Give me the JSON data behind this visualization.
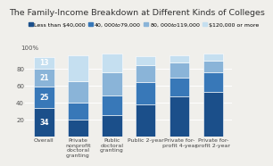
{
  "title": "The Family-Income Breakdown at Different Kinds of Colleges",
  "categories": [
    "Overall",
    "Private\nnonprofit\ndoctoral\ngranting",
    "Public\ndoctoral\ngranting",
    "Public 2-year",
    "Private for-\nprofit 4-year",
    "Private for-\nprofit 2-year"
  ],
  "legend_labels": [
    "Less than $40,000",
    "$40,000 to $79,000",
    "$80,000 to $119,000",
    "$120,000 or more"
  ],
  "colors": [
    "#1b4f8a",
    "#3878b8",
    "#8ab4d8",
    "#c5dff0"
  ],
  "data": [
    [
      34,
      25,
      21,
      13
    ],
    [
      20,
      20,
      25,
      30
    ],
    [
      25,
      23,
      27,
      22
    ],
    [
      38,
      26,
      20,
      10
    ],
    [
      47,
      22,
      18,
      8
    ],
    [
      52,
      23,
      14,
      8
    ]
  ],
  "ylim": [
    0,
    100
  ],
  "yticks": [
    20,
    40,
    60,
    80
  ],
  "y100_label": "100%",
  "background_color": "#f0efeb",
  "title_fontsize": 6.8,
  "legend_fontsize": 4.5,
  "tick_fontsize": 5.0,
  "xtick_fontsize": 4.5,
  "bar_width": 0.6,
  "label_vals": [
    34,
    25,
    21,
    13
  ]
}
